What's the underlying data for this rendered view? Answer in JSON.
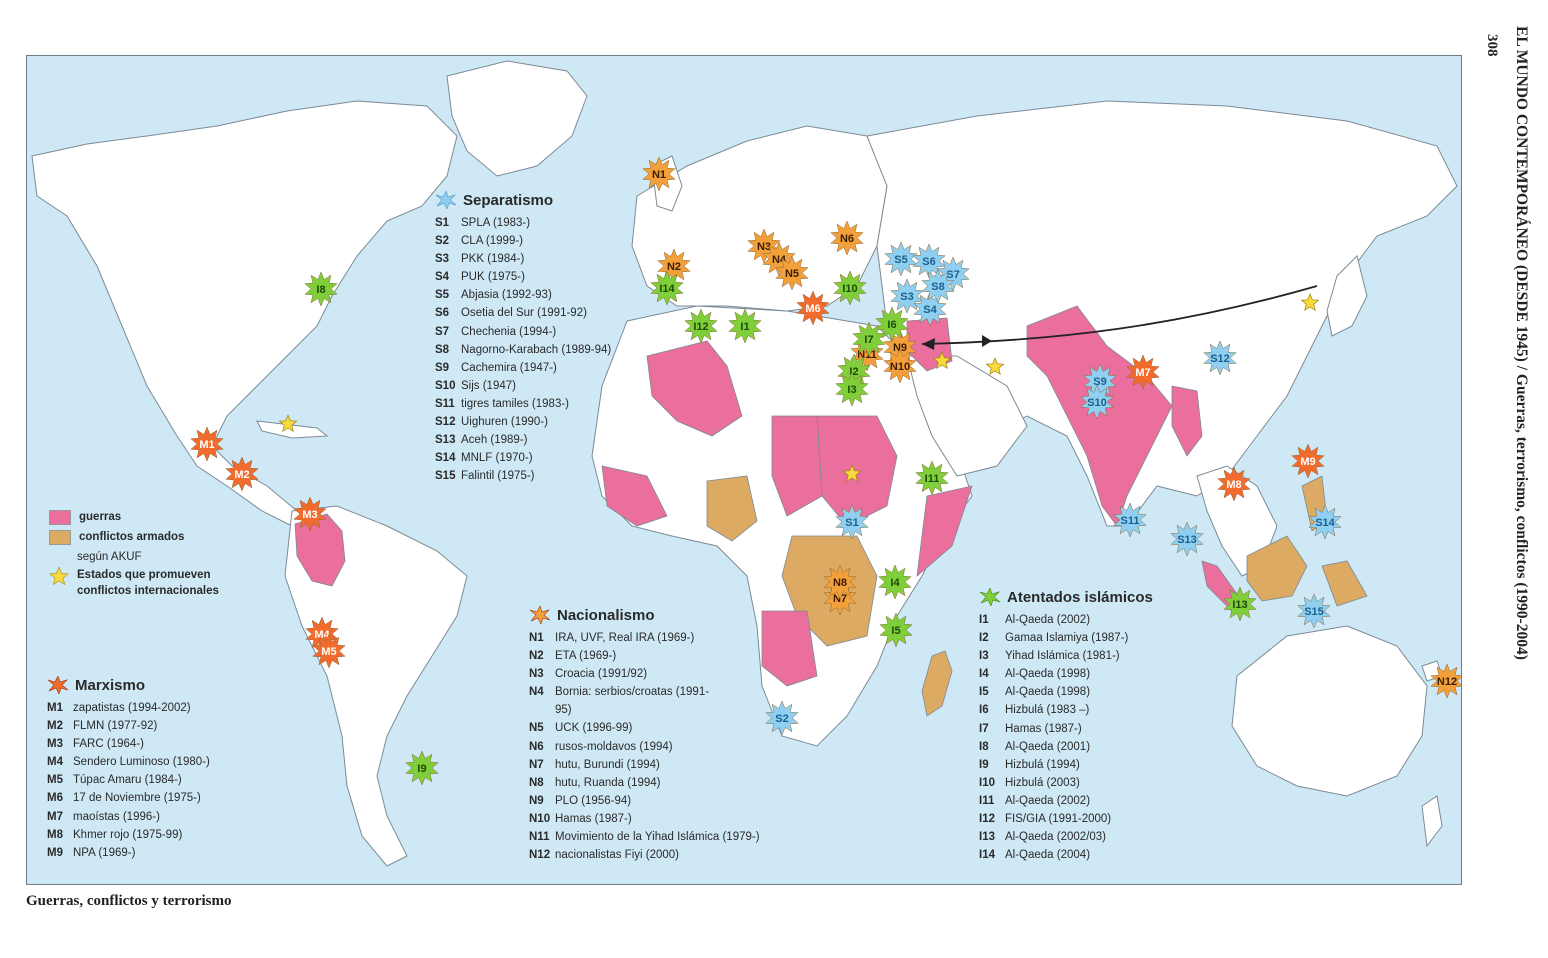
{
  "page_number": "308",
  "running_header": "EL MUNDO CONTEMPORÁNEO (DESDE 1945) / Guerras, terrorismo, conflictos (1990-2004)",
  "caption": "Guerras, conflictos y terrorismo",
  "colors": {
    "ocean": "#cfe8f6",
    "land": "#ffffff",
    "guerras": "#ea6f9c",
    "conflictos_armados": "#dcaa63",
    "separatismo": "#8fd0f2",
    "nacionalismo": "#f3a03a",
    "marxismo": "#f26a2c",
    "atentados": "#7fcf3a",
    "estados": "#f7d93a"
  },
  "key": {
    "guerras": "guerras",
    "conflictos": "conflictos armados",
    "segun": "según AKUF",
    "estados": "Estados que promueven conflictos internacionales"
  },
  "separatismo": {
    "title": "Separatismo",
    "items": [
      {
        "code": "S1",
        "text": "SPLA (1983-)"
      },
      {
        "code": "S2",
        "text": "CLA (1999-)"
      },
      {
        "code": "S3",
        "text": "PKK (1984-)"
      },
      {
        "code": "S4",
        "text": "PUK (1975-)"
      },
      {
        "code": "S5",
        "text": "Abjasia (1992-93)"
      },
      {
        "code": "S6",
        "text": "Osetia del Sur (1991-92)"
      },
      {
        "code": "S7",
        "text": "Chechenia (1994-)"
      },
      {
        "code": "S8",
        "text": "Nagorno-Karabach (1989-94)"
      },
      {
        "code": "S9",
        "text": "Cachemira (1947-)"
      },
      {
        "code": "S10",
        "text": "Sijs (1947)"
      },
      {
        "code": "S11",
        "text": "tigres tamiles (1983-)"
      },
      {
        "code": "S12",
        "text": "Uighuren (1990-)"
      },
      {
        "code": "S13",
        "text": "Aceh (1989-)"
      },
      {
        "code": "S14",
        "text": "MNLF (1970-)"
      },
      {
        "code": "S15",
        "text": "Falintil (1975-)"
      }
    ]
  },
  "marxismo": {
    "title": "Marxismo",
    "items": [
      {
        "code": "M1",
        "text": "zapatistas (1994-2002)"
      },
      {
        "code": "M2",
        "text": "FLMN (1977-92)"
      },
      {
        "code": "M3",
        "text": "FARC (1964-)"
      },
      {
        "code": "M4",
        "text": "Sendero Luminoso (1980-)"
      },
      {
        "code": "M5",
        "text": "Túpac Amaru (1984-)"
      },
      {
        "code": "M6",
        "text": "17 de Noviembre (1975-)"
      },
      {
        "code": "M7",
        "text": "maoístas (1996-)"
      },
      {
        "code": "M8",
        "text": "Khmer rojo (1975-99)"
      },
      {
        "code": "M9",
        "text": "NPA (1969-)"
      }
    ]
  },
  "nacionalismo": {
    "title": "Nacionalismo",
    "items": [
      {
        "code": "N1",
        "text": "IRA, UVF, Real IRA (1969-)"
      },
      {
        "code": "N2",
        "text": "ETA (1969-)"
      },
      {
        "code": "N3",
        "text": "Croacia (1991/92)"
      },
      {
        "code": "N4",
        "text": "Bornia: serbios/croatas (1991-95)"
      },
      {
        "code": "N5",
        "text": "UCK (1996-99)"
      },
      {
        "code": "N6",
        "text": "rusos-moldavos (1994)"
      },
      {
        "code": "N7",
        "text": "hutu, Burundi (1994)"
      },
      {
        "code": "N8",
        "text": "hutu, Ruanda (1994)"
      },
      {
        "code": "N9",
        "text": "PLO (1956-94)"
      },
      {
        "code": "N10",
        "text": "Hamas (1987-)"
      },
      {
        "code": "N11",
        "text": "Movimiento de la Yihad Islámica (1979-)"
      },
      {
        "code": "N12",
        "text": "nacionalistas Fiyi (2000)"
      }
    ]
  },
  "atentados": {
    "title": "Atentados islámicos",
    "items": [
      {
        "code": "I1",
        "text": "Al-Qaeda (2002)"
      },
      {
        "code": "I2",
        "text": "Gamaa Islamiya (1987-)"
      },
      {
        "code": "I3",
        "text": "Yihad Islámica (1981-)"
      },
      {
        "code": "I4",
        "text": "Al-Qaeda (1998)"
      },
      {
        "code": "I5",
        "text": "Al-Qaeda (1998)"
      },
      {
        "code": "I6",
        "text": "Hizbulá (1983 –)"
      },
      {
        "code": "I7",
        "text": "Hamas (1987-)"
      },
      {
        "code": "I8",
        "text": "Al-Qaeda (2001)"
      },
      {
        "code": "I9",
        "text": "Hizbulá (1994)"
      },
      {
        "code": "I10",
        "text": "Hizbulá (2003)"
      },
      {
        "code": "I11",
        "text": "Al-Qaeda (2002)"
      },
      {
        "code": "I12",
        "text": "FIS/GIA (1991-2000)"
      },
      {
        "code": "I13",
        "text": "Al-Qaeda (2002/03)"
      },
      {
        "code": "I14",
        "text": "Al-Qaeda (2004)"
      }
    ]
  },
  "markers": [
    {
      "code": "N1",
      "cat": "nacionalismo"
    },
    {
      "code": "N2",
      "cat": "nacionalismo"
    },
    {
      "code": "N3",
      "cat": "nacionalismo"
    },
    {
      "code": "N4",
      "cat": "nacionalismo"
    },
    {
      "code": "N5",
      "cat": "nacionalismo"
    },
    {
      "code": "N6",
      "cat": "nacionalismo"
    },
    {
      "code": "N7",
      "cat": "nacionalismo"
    },
    {
      "code": "N8",
      "cat": "nacionalismo"
    },
    {
      "code": "N9",
      "cat": "nacionalismo"
    },
    {
      "code": "N10",
      "cat": "nacionalismo"
    },
    {
      "code": "N11",
      "cat": "nacionalismo"
    },
    {
      "code": "N12",
      "cat": "nacionalismo"
    },
    {
      "code": "M1",
      "cat": "marxismo"
    },
    {
      "code": "M2",
      "cat": "marxismo"
    },
    {
      "code": "M3",
      "cat": "marxismo"
    },
    {
      "code": "M4",
      "cat": "marxismo"
    },
    {
      "code": "M5",
      "cat": "marxismo"
    },
    {
      "code": "M6",
      "cat": "marxismo"
    },
    {
      "code": "M7",
      "cat": "marxismo"
    },
    {
      "code": "M8",
      "cat": "marxismo"
    },
    {
      "code": "M9",
      "cat": "marxismo"
    },
    {
      "code": "S1",
      "cat": "separatismo"
    },
    {
      "code": "S2",
      "cat": "separatismo"
    },
    {
      "code": "S3",
      "cat": "separatismo"
    },
    {
      "code": "S4",
      "cat": "separatismo"
    },
    {
      "code": "S5",
      "cat": "separatismo"
    },
    {
      "code": "S6",
      "cat": "separatismo"
    },
    {
      "code": "S7",
      "cat": "separatismo"
    },
    {
      "code": "S8",
      "cat": "separatismo"
    },
    {
      "code": "S9",
      "cat": "separatismo"
    },
    {
      "code": "S10",
      "cat": "separatismo"
    },
    {
      "code": "S11",
      "cat": "separatismo"
    },
    {
      "code": "S12",
      "cat": "separatismo"
    },
    {
      "code": "S13",
      "cat": "separatismo"
    },
    {
      "code": "S14",
      "cat": "separatismo"
    },
    {
      "code": "S15",
      "cat": "separatismo"
    },
    {
      "code": "I1",
      "cat": "atentados"
    },
    {
      "code": "I2",
      "cat": "atentados"
    },
    {
      "code": "I3",
      "cat": "atentados"
    },
    {
      "code": "I4",
      "cat": "atentados"
    },
    {
      "code": "I5",
      "cat": "atentados"
    },
    {
      "code": "I6",
      "cat": "atentados"
    },
    {
      "code": "I7",
      "cat": "atentados"
    },
    {
      "code": "I8",
      "cat": "atentados"
    },
    {
      "code": "I9",
      "cat": "atentados"
    },
    {
      "code": "I10",
      "cat": "atentados"
    },
    {
      "code": "I11",
      "cat": "atentados"
    },
    {
      "code": "I12",
      "cat": "atentados"
    },
    {
      "code": "I13",
      "cat": "atentados"
    },
    {
      "code": "I14",
      "cat": "atentados"
    }
  ]
}
